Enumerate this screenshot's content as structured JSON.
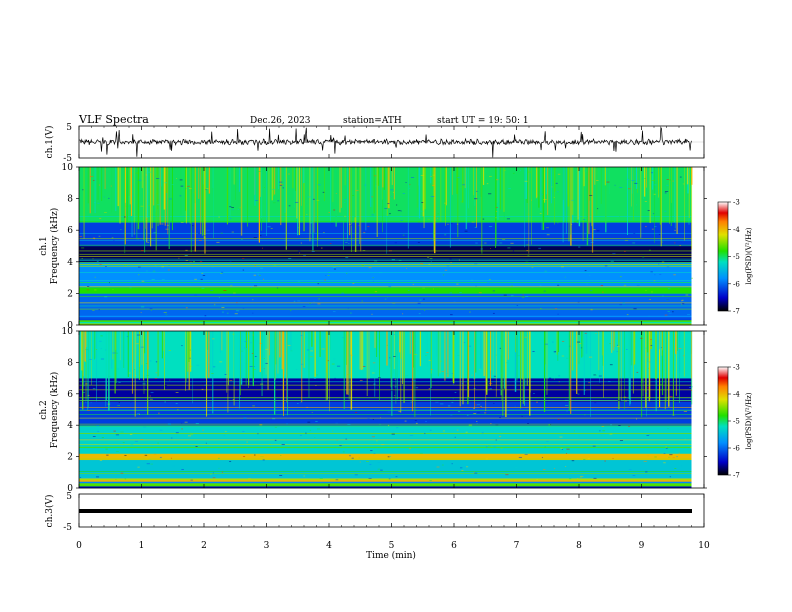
{
  "header": {
    "title": "VLF  Spectra",
    "date": "Dec.26, 2023",
    "station": "station=ATH",
    "start": "start  UT  =     19: 50: 1"
  },
  "chart_data": [
    {
      "type": "line",
      "panel": "ch1-waveform",
      "ylabel": "ch.1(V)",
      "yticks": [
        "5",
        "-5"
      ],
      "ylim": [
        -5,
        5
      ],
      "baseline": 0,
      "color": "#000000"
    },
    {
      "type": "heatmap",
      "panel": "ch1-spectrogram",
      "ylabel_1": "ch.1",
      "ylabel_2": "Frequency  (kHz)",
      "yticks": [
        "0",
        "2",
        "4",
        "6",
        "8",
        "10"
      ],
      "ylim": [
        0,
        10
      ],
      "xlim": [
        0,
        10
      ],
      "colorbar": {
        "label": "log(PSD)(V²/Hz)",
        "ticks": [
          "-3",
          "-4",
          "-5",
          "-6",
          "-7"
        ],
        "range": [
          -7,
          -3
        ]
      },
      "bands": [
        {
          "from": 0,
          "to": 0.6,
          "level": "mixed"
        },
        {
          "from": 0.6,
          "to": 2.0,
          "level": -6.0
        },
        {
          "from": 2.0,
          "to": 2.4,
          "level": -4.8
        },
        {
          "from": 2.4,
          "to": 4.0,
          "level": -5.8
        },
        {
          "from": 4.0,
          "to": 5.0,
          "level": -6.8
        },
        {
          "from": 5.0,
          "to": 6.5,
          "level": -6.2
        },
        {
          "from": 6.5,
          "to": 10.0,
          "level": -5.0
        }
      ]
    },
    {
      "type": "heatmap",
      "panel": "ch2-spectrogram",
      "ylabel_1": "ch.2",
      "ylabel_2": "Frequency  (kHz)",
      "yticks": [
        "0",
        "2",
        "4",
        "6",
        "8",
        "10"
      ],
      "ylim": [
        0,
        10
      ],
      "xlim": [
        0,
        10
      ],
      "colorbar": {
        "label": "log(PSD)(V²/Hz)",
        "ticks": [
          "-3",
          "-4",
          "-5",
          "-6",
          "-7"
        ],
        "range": [
          -7,
          -3
        ]
      },
      "bands": [
        {
          "from": 0,
          "to": 0.6,
          "level": "mixed"
        },
        {
          "from": 0.6,
          "to": 1.8,
          "level": -5.4
        },
        {
          "from": 1.8,
          "to": 2.2,
          "level": -4.0
        },
        {
          "from": 2.2,
          "to": 4.0,
          "level": -5.3
        },
        {
          "from": 4.0,
          "to": 5.5,
          "level": -6.2
        },
        {
          "from": 5.5,
          "to": 7.0,
          "level": -6.6
        },
        {
          "from": 7.0,
          "to": 10.0,
          "level": -5.2
        }
      ]
    },
    {
      "type": "line",
      "panel": "ch3-waveform",
      "ylabel": "ch.3(V)",
      "yticks": [
        "5",
        "-5"
      ],
      "ylim": [
        -5,
        5
      ],
      "baseline": 0,
      "color": "#000000"
    }
  ],
  "xaxis": {
    "label": "Time  (min)",
    "ticks": [
      "0",
      "1",
      "2",
      "3",
      "4",
      "5",
      "6",
      "7",
      "8",
      "9",
      "10"
    ],
    "xlim": [
      0,
      10
    ],
    "data_end": 9.8
  }
}
